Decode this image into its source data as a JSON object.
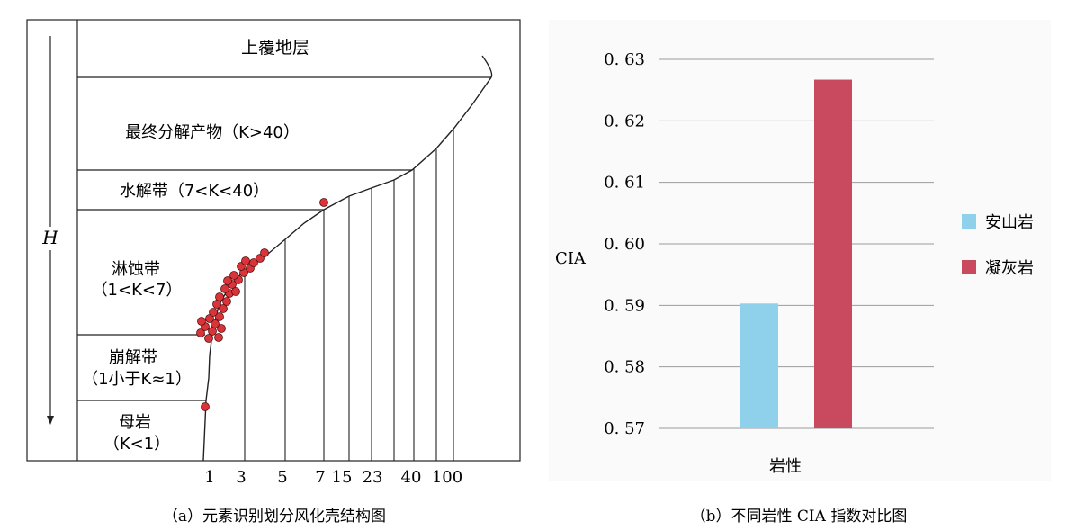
{
  "left_panel": {
    "caption": "（a）元素识别划分风化壳结构图",
    "axis_label": "H",
    "zones": [
      {
        "key": "overburden",
        "label": "上覆地层"
      },
      {
        "key": "final",
        "label": "最终分解产物（K>40）"
      },
      {
        "key": "hydrolysis",
        "label": "水解带（7<K<40）"
      },
      {
        "key": "leaching",
        "label_line1": "淋蚀带",
        "label_line2": "（1<K<7）"
      },
      {
        "key": "disintegration",
        "label_line1": "崩解带",
        "label_line2": "（1小于K≈1）"
      },
      {
        "key": "parent",
        "label_line1": "母岩",
        "label_line2": "（K<1）"
      }
    ],
    "k_ticks": [
      "1",
      "3",
      "5",
      "7",
      "15",
      "23",
      "40",
      "100"
    ],
    "point_color": "#d9343a"
  },
  "chart_data": {
    "type": "bar",
    "caption": "（b）不同岩性 CIA 指数对比图",
    "xlabel": "岩性",
    "ylabel": "CIA",
    "ylim": [
      0.57,
      0.63
    ],
    "yticks": [
      "0. 57",
      "0. 58",
      "0. 59",
      "0. 60",
      "0. 61",
      "0. 62",
      "0. 63"
    ],
    "grid": true,
    "legend_position": "right",
    "series": [
      {
        "name": "安山岩",
        "value": 0.5903,
        "color": "#8fd0ea"
      },
      {
        "name": "凝灰岩",
        "value": 0.6267,
        "color": "#c9495f"
      }
    ]
  }
}
